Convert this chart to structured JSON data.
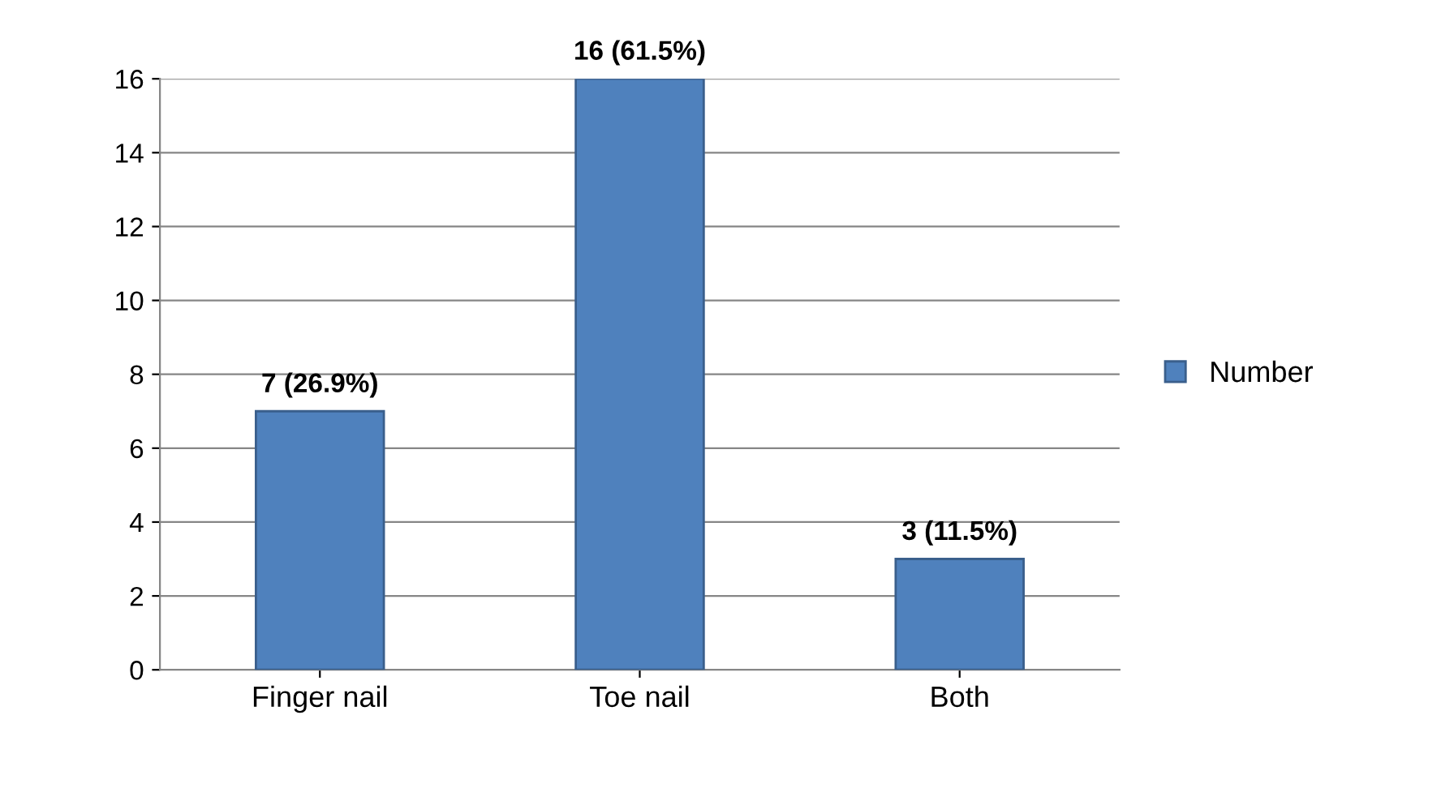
{
  "chart_data": {
    "type": "bar",
    "categories": [
      "Finger nail",
      "Toe nail",
      "Both"
    ],
    "series": [
      {
        "name": "Number",
        "color": "#4f81bd",
        "values": [
          7,
          16,
          3
        ],
        "value_labels": [
          "7 (26.9%)",
          "16 (61.5%)",
          "3 (11.5%)"
        ]
      }
    ],
    "ylim": [
      0,
      16
    ],
    "yticks": [
      0,
      2,
      4,
      6,
      8,
      10,
      12,
      14,
      16
    ],
    "grid": "y",
    "legend": "right"
  }
}
